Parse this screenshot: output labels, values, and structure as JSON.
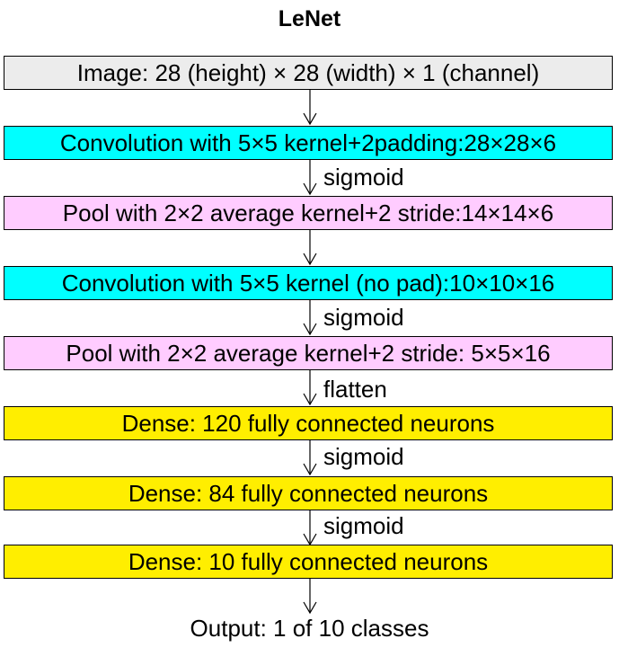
{
  "title": "LeNet",
  "colors": {
    "input": "#ececec",
    "convolution": "#00ffff",
    "pool": "#ffccff",
    "dense": "#ffee00"
  },
  "layers": [
    {
      "label": "Image: 28 (height) × 28 (width) × 1 (channel)",
      "kind": "input"
    },
    {
      "label": "Convolution with 5×5 kernel+2padding:28×28×6",
      "kind": "convolution"
    },
    {
      "label": "Pool with 2×2 average kernel+2 stride:14×14×6",
      "kind": "pool"
    },
    {
      "label": "Convolution with 5×5 kernel (no pad):10×10×16",
      "kind": "convolution"
    },
    {
      "label": "Pool with 2×2 average kernel+2 stride: 5×5×16",
      "kind": "pool"
    },
    {
      "label": "Dense: 120 fully connected neurons",
      "kind": "dense"
    },
    {
      "label": "Dense: 84 fully connected neurons",
      "kind": "dense"
    },
    {
      "label": "Dense: 10 fully connected neurons",
      "kind": "dense"
    }
  ],
  "edges": [
    "",
    "sigmoid",
    "",
    "sigmoid",
    "flatten",
    "sigmoid",
    "sigmoid",
    ""
  ],
  "output": "Output: 1 of 10 classes"
}
